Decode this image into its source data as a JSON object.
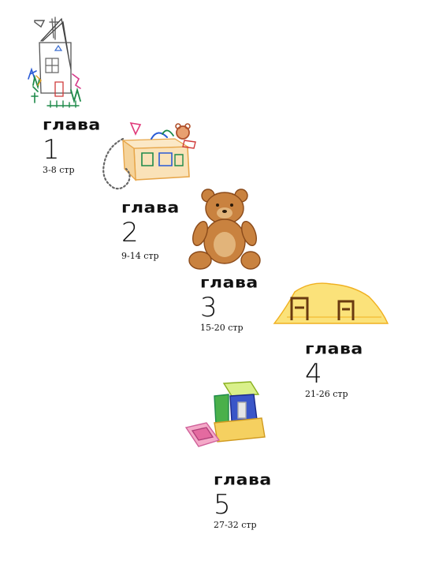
{
  "chapters": [
    {
      "label": "глава",
      "number": "1",
      "pages": "3-8 стр"
    },
    {
      "label": "глава",
      "number": "2",
      "pages": "9-14 стр"
    },
    {
      "label": "глава",
      "number": "3",
      "pages": "15-20 стр"
    },
    {
      "label": "глава",
      "number": "4",
      "pages": "21-26 стр"
    },
    {
      "label": "глава",
      "number": "5",
      "pages": "27-32 стр"
    }
  ]
}
